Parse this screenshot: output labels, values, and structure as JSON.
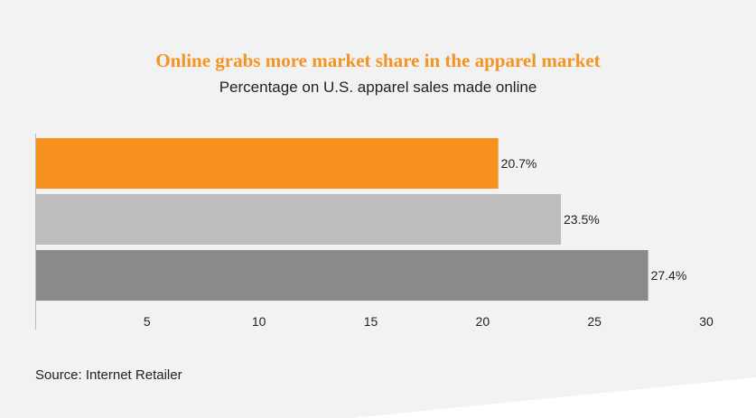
{
  "chart_data": {
    "type": "bar",
    "orientation": "horizontal",
    "title": "Online grabs more market share in the apparel market",
    "subtitle": "Percentage on U.S. apparel sales made online",
    "categories": [
      "",
      "",
      ""
    ],
    "values": [
      20.7,
      23.5,
      27.4
    ],
    "data_labels": [
      "20.7%",
      "23.5%",
      "27.4%"
    ],
    "colors": [
      "#f7921e",
      "#bdbdbd",
      "#8a8a8a"
    ],
    "xlabel": "",
    "ylabel": "",
    "xlim": [
      0,
      30
    ],
    "xticks": [
      5,
      10,
      15,
      20,
      25,
      30
    ],
    "grid": false,
    "legend": "none"
  },
  "source": "Source: Internet Retailer"
}
